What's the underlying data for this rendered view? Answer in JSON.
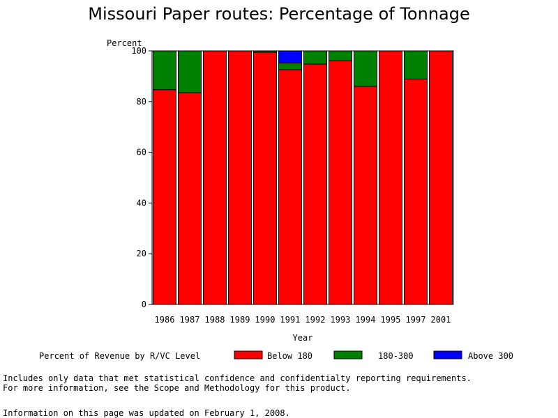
{
  "chart_data": {
    "type": "bar",
    "stacked": true,
    "title": "Missouri Paper routes: Percentage of Tonnage",
    "xlabel": "Year",
    "ylabel": "Percent",
    "ylim": [
      0,
      100
    ],
    "yticks": [
      0,
      20,
      40,
      60,
      80,
      100
    ],
    "categories": [
      "1986",
      "1987",
      "1988",
      "1989",
      "1990",
      "1991",
      "1992",
      "1993",
      "1994",
      "1995",
      "1997",
      "2001"
    ],
    "legend_title": "Percent of Revenue by R/VC Level",
    "series": [
      {
        "name": "Below 180",
        "color": "#ff0000",
        "values": [
          84.7,
          83.5,
          100,
          100,
          99.5,
          92.6,
          94.8,
          96.1,
          86.0,
          100,
          88.9,
          100
        ]
      },
      {
        "name": "180-300",
        "color": "#008000",
        "values": [
          15.3,
          16.5,
          0,
          0,
          0.5,
          2.6,
          5.2,
          3.9,
          14.0,
          0,
          11.1,
          0
        ]
      },
      {
        "name": "Above 300",
        "color": "#0000ff",
        "values": [
          0,
          0,
          0,
          0,
          0,
          4.8,
          0,
          0,
          0,
          0,
          0,
          0
        ]
      }
    ]
  },
  "notes": [
    "Includes only data that met statistical confidence and confidentialty reporting requirements.",
    "For more information, see the Scope and Methodology for this product."
  ],
  "updated": "Information on this page was updated on February 1, 2008."
}
